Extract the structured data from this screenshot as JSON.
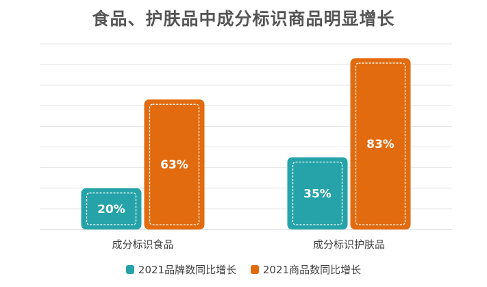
{
  "chart_data": {
    "type": "bar",
    "title": "食品、护肤品中成分标识商品明显增长",
    "categories": [
      "成分标识食品",
      "成分标识护肤品"
    ],
    "series": [
      {
        "name": "2021品牌数同比增长",
        "values": [
          20,
          35
        ],
        "labels": [
          "20%",
          "35%"
        ],
        "color": "#26a3a8"
      },
      {
        "name": "2021商品数同比增长",
        "values": [
          63,
          83
        ],
        "labels": [
          "63%",
          "83%"
        ],
        "color": "#e26b0f"
      }
    ],
    "ylim": [
      0,
      90
    ],
    "grid": true,
    "legend_position": "bottom"
  }
}
